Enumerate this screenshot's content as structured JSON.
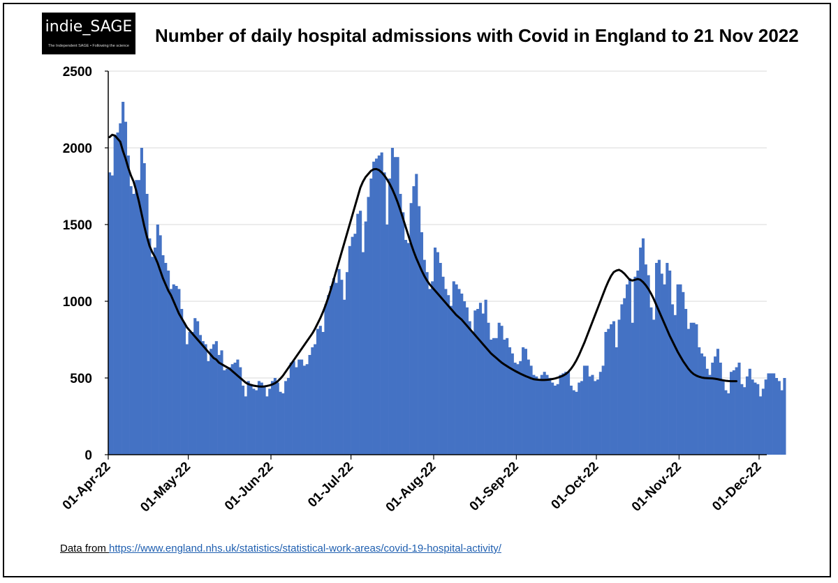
{
  "logo": {
    "name": "indie_SAGE",
    "tagline": "The Independent SAGE • Following the science"
  },
  "title": "Number of daily hospital admissions with Covid in England to 21 Nov 2022",
  "source": {
    "label": "Data from ",
    "url": "https://www.england.nhs.uk/statistics/statistical-work-areas/covid-19-hospital-activity/"
  },
  "colors": {
    "bars": "#4472c4",
    "line": "#000000",
    "grid": "#d9d9d9"
  },
  "chart_data": {
    "type": "bar",
    "title": "Number of daily hospital admissions with Covid in England to 21 Nov 2022",
    "xlabel": "",
    "ylabel": "",
    "ylim": [
      0,
      2500
    ],
    "yticks": [
      0,
      500,
      1000,
      1500,
      2000,
      2500
    ],
    "xlim": [
      "2022-04-01",
      "2022-12-01"
    ],
    "xticks": [
      {
        "date": "2022-04-01",
        "label": "01-Apr-22"
      },
      {
        "date": "2022-05-01",
        "label": "01-May-22"
      },
      {
        "date": "2022-06-01",
        "label": "01-Jun-22"
      },
      {
        "date": "2022-07-01",
        "label": "01-Jul-22"
      },
      {
        "date": "2022-08-01",
        "label": "01-Aug-22"
      },
      {
        "date": "2022-09-01",
        "label": "01-Sep-22"
      },
      {
        "date": "2022-10-01",
        "label": "01-Oct-22"
      },
      {
        "date": "2022-11-01",
        "label": "01-Nov-22"
      },
      {
        "date": "2022-12-01",
        "label": "01-Dec-22"
      }
    ],
    "grid": true,
    "legend": "none",
    "series": [
      {
        "kind": "bar",
        "start_date": "2022-04-01",
        "values": [
          1840,
          1820,
          2080,
          2100,
          2160,
          2300,
          2170,
          1950,
          1750,
          1700,
          1790,
          1790,
          2000,
          1900,
          1700,
          1410,
          1290,
          1350,
          1500,
          1430,
          1300,
          1250,
          1200,
          1080,
          1110,
          1100,
          1080,
          950,
          860,
          720,
          800,
          800,
          890,
          870,
          780,
          740,
          720,
          610,
          690,
          720,
          740,
          650,
          680,
          550,
          560,
          570,
          590,
          600,
          620,
          570,
          450,
          380,
          480,
          460,
          430,
          420,
          480,
          470,
          440,
          380,
          430,
          480,
          500,
          470,
          410,
          400,
          480,
          500,
          600,
          610,
          570,
          620,
          620,
          580,
          590,
          650,
          700,
          720,
          820,
          840,
          800,
          980,
          1040,
          1100,
          1150,
          1120,
          1210,
          1140,
          1010,
          1190,
          1360,
          1420,
          1440,
          1570,
          1590,
          1320,
          1520,
          1680,
          1800,
          1910,
          1930,
          1950,
          1970,
          1840,
          1500,
          1800,
          2000,
          1940,
          1940,
          1700,
          1580,
          1400,
          1380,
          1640,
          1750,
          1830,
          1620,
          1450,
          1270,
          1190,
          1080,
          1130,
          1350,
          1320,
          1250,
          1160,
          1080,
          1040,
          970,
          1130,
          1110,
          1080,
          1050,
          1000,
          960,
          870,
          800,
          940,
          950,
          990,
          920,
          1010,
          860,
          750,
          760,
          760,
          860,
          840,
          750,
          760,
          700,
          660,
          600,
          590,
          610,
          700,
          690,
          620,
          580,
          520,
          510,
          490,
          520,
          540,
          520,
          500,
          470,
          450,
          460,
          520,
          530,
          540,
          540,
          450,
          420,
          410,
          470,
          480,
          580,
          580,
          510,
          520,
          480,
          490,
          540,
          580,
          800,
          820,
          850,
          870,
          700,
          880,
          980,
          1020,
          1110,
          1150,
          860,
          1160,
          1200,
          1350,
          1410,
          1240,
          1170,
          960,
          880,
          1250,
          1270,
          1180,
          1110,
          1250,
          1200,
          980,
          910,
          1110,
          1110,
          1060,
          950,
          820,
          860,
          860,
          850,
          700,
          660,
          640,
          560,
          520,
          600,
          640,
          690,
          600,
          480,
          420,
          400,
          540,
          550,
          570,
          600,
          460,
          440,
          510,
          560,
          490,
          470,
          460,
          380,
          430,
          490,
          530,
          530,
          530,
          500,
          480,
          420,
          500
        ]
      },
      {
        "kind": "line",
        "name": "",
        "start_date": "2022-04-01",
        "values": [
          2070,
          2085,
          2080,
          2060,
          2040,
          1980,
          1930,
          1870,
          1820,
          1780,
          1720,
          1650,
          1570,
          1490,
          1420,
          1360,
          1320,
          1290,
          1250,
          1200,
          1150,
          1110,
          1070,
          1040,
          1000,
          960,
          920,
          890,
          860,
          830,
          810,
          790,
          770,
          750,
          730,
          710,
          690,
          670,
          650,
          630,
          620,
          600,
          590,
          580,
          570,
          560,
          545,
          530,
          515,
          500,
          485,
          470,
          460,
          455,
          450,
          447,
          445,
          444,
          445,
          448,
          452,
          458,
          466,
          478,
          495,
          515,
          540,
          565,
          590,
          615,
          640,
          665,
          690,
          715,
          740,
          765,
          790,
          820,
          855,
          890,
          930,
          975,
          1025,
          1080,
          1140,
          1200,
          1260,
          1320,
          1380,
          1440,
          1500,
          1560,
          1620,
          1680,
          1740,
          1780,
          1810,
          1830,
          1850,
          1860,
          1862,
          1855,
          1840,
          1820,
          1795,
          1765,
          1730,
          1690,
          1645,
          1595,
          1540,
          1485,
          1430,
          1375,
          1325,
          1280,
          1240,
          1200,
          1165,
          1135,
          1110,
          1090,
          1070,
          1050,
          1030,
          1010,
          990,
          970,
          950,
          930,
          910,
          895,
          880,
          860,
          840,
          820,
          800,
          780,
          760,
          740,
          720,
          700,
          680,
          660,
          645,
          630,
          615,
          600,
          588,
          577,
          566,
          556,
          546,
          537,
          528,
          520,
          512,
          505,
          498,
          492,
          490,
          488,
          487,
          487,
          488,
          490,
          493,
          497,
          502,
          508,
          515,
          525,
          540,
          560,
          585,
          615,
          650,
          690,
          730,
          775,
          820,
          865,
          910,
          955,
          1000,
          1045,
          1090,
          1130,
          1165,
          1190,
          1200,
          1205,
          1195,
          1180,
          1160,
          1140,
          1135,
          1140,
          1145,
          1140,
          1125,
          1105,
          1080,
          1050,
          1015,
          975,
          935,
          895,
          855,
          815,
          775,
          740,
          705,
          670,
          640,
          610,
          585,
          560,
          540,
          525,
          515,
          508,
          503,
          500,
          499,
          498,
          497,
          495,
          492,
          488,
          485,
          482,
          480,
          479,
          479,
          479
        ]
      }
    ]
  }
}
